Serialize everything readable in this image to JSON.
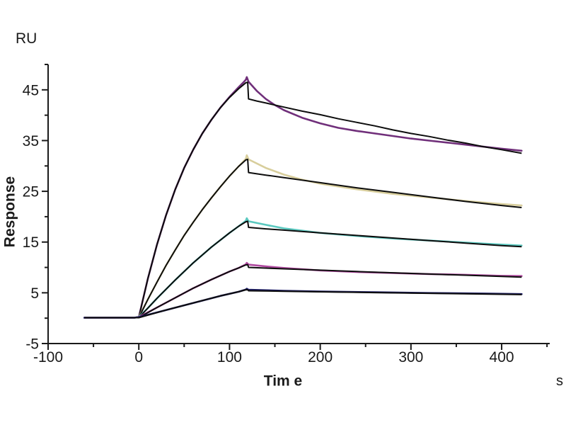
{
  "page": {
    "background": "#ffffff"
  },
  "chart_data": {
    "type": "line",
    "title": "",
    "legend": null,
    "grid": false,
    "x_axis": {
      "label": "Tim e",
      "unit_label": "s",
      "range": [
        -100,
        453
      ],
      "major_ticks": [
        -100,
        0,
        100,
        200,
        300,
        400
      ],
      "minor_ticks": [
        -50,
        50,
        150,
        250,
        350,
        450
      ]
    },
    "y_axis": {
      "label": "Response",
      "unit_label": "RU",
      "range": [
        -5,
        50
      ],
      "major_ticks": [
        -5,
        5,
        15,
        25,
        35,
        45
      ],
      "minor_ticks": [
        0,
        10,
        20,
        30,
        40,
        50
      ]
    },
    "axis_color": "#1a1a1a",
    "fit_color": "#0d0d0d",
    "series": [
      {
        "name": "trace-1",
        "color_name": "purple",
        "color": "#702F7A",
        "baseline_ru": 0.1,
        "peak_ru": 47.5,
        "end_ru": 33.0,
        "association_start_s": 0,
        "association_end_s": 120,
        "dissociation_end_s": 422,
        "data": [
          [
            -60,
            0.1
          ],
          [
            -5,
            0.1
          ],
          [
            0,
            0.2
          ],
          [
            5,
            4.0
          ],
          [
            10,
            7.8
          ],
          [
            20,
            14.5
          ],
          [
            30,
            20.3
          ],
          [
            40,
            25.3
          ],
          [
            50,
            29.6
          ],
          [
            60,
            33.2
          ],
          [
            70,
            36.4
          ],
          [
            80,
            39.1
          ],
          [
            90,
            41.5
          ],
          [
            100,
            43.6
          ],
          [
            110,
            45.5
          ],
          [
            116,
            46.6
          ],
          [
            118,
            47.0
          ],
          [
            119,
            47.5
          ],
          [
            121,
            46.6
          ],
          [
            130,
            44.8
          ],
          [
            140,
            43.2
          ],
          [
            150,
            42.0
          ],
          [
            160,
            41.0
          ],
          [
            180,
            39.5
          ],
          [
            200,
            38.4
          ],
          [
            220,
            37.5
          ],
          [
            240,
            36.9
          ],
          [
            260,
            36.4
          ],
          [
            280,
            35.9
          ],
          [
            300,
            35.4
          ],
          [
            320,
            35.0
          ],
          [
            340,
            34.6
          ],
          [
            360,
            34.2
          ],
          [
            380,
            33.8
          ],
          [
            400,
            33.4
          ],
          [
            422,
            33.0
          ]
        ],
        "fit": [
          [
            -60,
            0.1
          ],
          [
            0,
            0.1
          ],
          [
            5,
            4.0
          ],
          [
            10,
            7.8
          ],
          [
            20,
            14.5
          ],
          [
            30,
            20.3
          ],
          [
            40,
            25.3
          ],
          [
            50,
            29.6
          ],
          [
            60,
            33.2
          ],
          [
            70,
            36.4
          ],
          [
            80,
            39.1
          ],
          [
            90,
            41.5
          ],
          [
            100,
            43.5
          ],
          [
            110,
            45.2
          ],
          [
            118,
            46.4
          ],
          [
            120,
            46.5
          ],
          [
            121,
            43.2
          ],
          [
            130,
            42.8
          ],
          [
            140,
            42.4
          ],
          [
            150,
            42.0
          ],
          [
            160,
            41.6
          ],
          [
            180,
            40.8
          ],
          [
            200,
            40.1
          ],
          [
            220,
            39.3
          ],
          [
            240,
            38.6
          ],
          [
            260,
            37.9
          ],
          [
            280,
            37.1
          ],
          [
            300,
            36.4
          ],
          [
            320,
            35.8
          ],
          [
            340,
            35.1
          ],
          [
            360,
            34.5
          ],
          [
            380,
            33.8
          ],
          [
            400,
            33.2
          ],
          [
            422,
            32.5
          ]
        ]
      },
      {
        "name": "trace-2",
        "color_name": "tan",
        "color": "#D8CE9C",
        "baseline_ru": 0.1,
        "peak_ru": 32.1,
        "end_ru": 22.2,
        "association_start_s": 0,
        "association_end_s": 120,
        "dissociation_end_s": 422,
        "data": [
          [
            -60,
            0.1
          ],
          [
            -5,
            0.1
          ],
          [
            0,
            0.2
          ],
          [
            10,
            3.7
          ],
          [
            20,
            7.1
          ],
          [
            30,
            10.4
          ],
          [
            40,
            13.4
          ],
          [
            50,
            16.3
          ],
          [
            60,
            18.9
          ],
          [
            70,
            21.4
          ],
          [
            80,
            23.7
          ],
          [
            90,
            25.9
          ],
          [
            100,
            28.0
          ],
          [
            110,
            29.9
          ],
          [
            118,
            31.4
          ],
          [
            119,
            32.1
          ],
          [
            121,
            31.3
          ],
          [
            140,
            29.6
          ],
          [
            160,
            28.3
          ],
          [
            180,
            27.3
          ],
          [
            200,
            26.5
          ],
          [
            240,
            25.4
          ],
          [
            280,
            24.5
          ],
          [
            320,
            23.8
          ],
          [
            360,
            23.1
          ],
          [
            400,
            22.5
          ],
          [
            422,
            22.2
          ]
        ],
        "fit": [
          [
            -60,
            0.1
          ],
          [
            0,
            0.1
          ],
          [
            10,
            3.7
          ],
          [
            20,
            7.1
          ],
          [
            30,
            10.4
          ],
          [
            40,
            13.4
          ],
          [
            50,
            16.3
          ],
          [
            60,
            18.9
          ],
          [
            70,
            21.4
          ],
          [
            80,
            23.7
          ],
          [
            90,
            25.9
          ],
          [
            100,
            28.0
          ],
          [
            110,
            29.9
          ],
          [
            118,
            31.2
          ],
          [
            120,
            31.3
          ],
          [
            121,
            28.7
          ],
          [
            140,
            28.2
          ],
          [
            160,
            27.7
          ],
          [
            200,
            26.7
          ],
          [
            240,
            25.7
          ],
          [
            280,
            24.8
          ],
          [
            320,
            23.9
          ],
          [
            360,
            23.0
          ],
          [
            400,
            22.2
          ],
          [
            422,
            21.8
          ]
        ]
      },
      {
        "name": "trace-3",
        "color_name": "cyan",
        "color": "#5AC8BF",
        "baseline_ru": 0.1,
        "peak_ru": 19.7,
        "end_ru": 14.3,
        "association_start_s": 0,
        "association_end_s": 120,
        "dissociation_end_s": 422,
        "data": [
          [
            -60,
            0.1
          ],
          [
            -5,
            0.1
          ],
          [
            0,
            0.2
          ],
          [
            10,
            2.0
          ],
          [
            20,
            3.9
          ],
          [
            40,
            7.5
          ],
          [
            60,
            10.9
          ],
          [
            80,
            14.0
          ],
          [
            100,
            16.8
          ],
          [
            110,
            18.1
          ],
          [
            118,
            19.2
          ],
          [
            119,
            19.7
          ],
          [
            121,
            19.1
          ],
          [
            140,
            18.4
          ],
          [
            160,
            17.7
          ],
          [
            200,
            16.8
          ],
          [
            240,
            16.2
          ],
          [
            280,
            15.7
          ],
          [
            320,
            15.3
          ],
          [
            360,
            14.9
          ],
          [
            400,
            14.5
          ],
          [
            422,
            14.3
          ]
        ],
        "fit": [
          [
            -60,
            0.1
          ],
          [
            0,
            0.1
          ],
          [
            10,
            2.0
          ],
          [
            20,
            3.9
          ],
          [
            40,
            7.5
          ],
          [
            60,
            10.9
          ],
          [
            80,
            14.0
          ],
          [
            100,
            16.8
          ],
          [
            110,
            18.1
          ],
          [
            118,
            19.0
          ],
          [
            120,
            19.1
          ],
          [
            121,
            17.9
          ],
          [
            140,
            17.6
          ],
          [
            160,
            17.35
          ],
          [
            200,
            16.8
          ],
          [
            240,
            16.3
          ],
          [
            280,
            15.8
          ],
          [
            320,
            15.3
          ],
          [
            360,
            14.8
          ],
          [
            400,
            14.3
          ],
          [
            422,
            14.1
          ]
        ]
      },
      {
        "name": "trace-4",
        "color_name": "magenta",
        "color": "#B04AA0",
        "baseline_ru": 0.1,
        "peak_ru": 10.9,
        "end_ru": 8.3,
        "association_start_s": 0,
        "association_end_s": 120,
        "dissociation_end_s": 422,
        "data": [
          [
            -60,
            0.1
          ],
          [
            -5,
            0.1
          ],
          [
            0,
            0.2
          ],
          [
            20,
            2.1
          ],
          [
            40,
            4.0
          ],
          [
            60,
            5.9
          ],
          [
            80,
            7.6
          ],
          [
            100,
            9.2
          ],
          [
            110,
            9.9
          ],
          [
            118,
            10.6
          ],
          [
            119,
            10.9
          ],
          [
            121,
            10.55
          ],
          [
            140,
            10.2
          ],
          [
            160,
            9.9
          ],
          [
            200,
            9.4
          ],
          [
            240,
            9.1
          ],
          [
            280,
            8.9
          ],
          [
            320,
            8.7
          ],
          [
            360,
            8.55
          ],
          [
            400,
            8.35
          ],
          [
            422,
            8.3
          ]
        ],
        "fit": [
          [
            -60,
            0.1
          ],
          [
            0,
            0.1
          ],
          [
            20,
            2.1
          ],
          [
            40,
            4.0
          ],
          [
            60,
            5.9
          ],
          [
            80,
            7.6
          ],
          [
            100,
            9.2
          ],
          [
            110,
            9.9
          ],
          [
            118,
            10.5
          ],
          [
            120,
            10.55
          ],
          [
            121,
            10.0
          ],
          [
            160,
            9.73
          ],
          [
            200,
            9.46
          ],
          [
            240,
            9.2
          ],
          [
            280,
            8.95
          ],
          [
            320,
            8.7
          ],
          [
            360,
            8.47
          ],
          [
            400,
            8.24
          ],
          [
            422,
            8.1
          ]
        ]
      },
      {
        "name": "trace-5",
        "color_name": "navy",
        "color": "#1B1B63",
        "baseline_ru": 0.1,
        "peak_ru": 5.8,
        "end_ru": 4.75,
        "association_start_s": 0,
        "association_end_s": 120,
        "dissociation_end_s": 422,
        "data": [
          [
            -60,
            0.1
          ],
          [
            -5,
            0.1
          ],
          [
            0,
            0.2
          ],
          [
            30,
            1.6
          ],
          [
            60,
            3.0
          ],
          [
            90,
            4.4
          ],
          [
            110,
            5.2
          ],
          [
            118,
            5.65
          ],
          [
            119,
            5.8
          ],
          [
            121,
            5.6
          ],
          [
            160,
            5.4
          ],
          [
            200,
            5.25
          ],
          [
            260,
            5.1
          ],
          [
            320,
            4.95
          ],
          [
            380,
            4.85
          ],
          [
            422,
            4.75
          ]
        ],
        "fit": [
          [
            -60,
            0.1
          ],
          [
            0,
            0.1
          ],
          [
            30,
            1.6
          ],
          [
            60,
            3.0
          ],
          [
            90,
            4.4
          ],
          [
            110,
            5.2
          ],
          [
            118,
            5.6
          ],
          [
            120,
            5.6
          ],
          [
            121,
            5.4
          ],
          [
            160,
            5.3
          ],
          [
            200,
            5.19
          ],
          [
            260,
            5.04
          ],
          [
            320,
            4.9
          ],
          [
            380,
            4.76
          ],
          [
            422,
            4.65
          ]
        ]
      }
    ]
  }
}
